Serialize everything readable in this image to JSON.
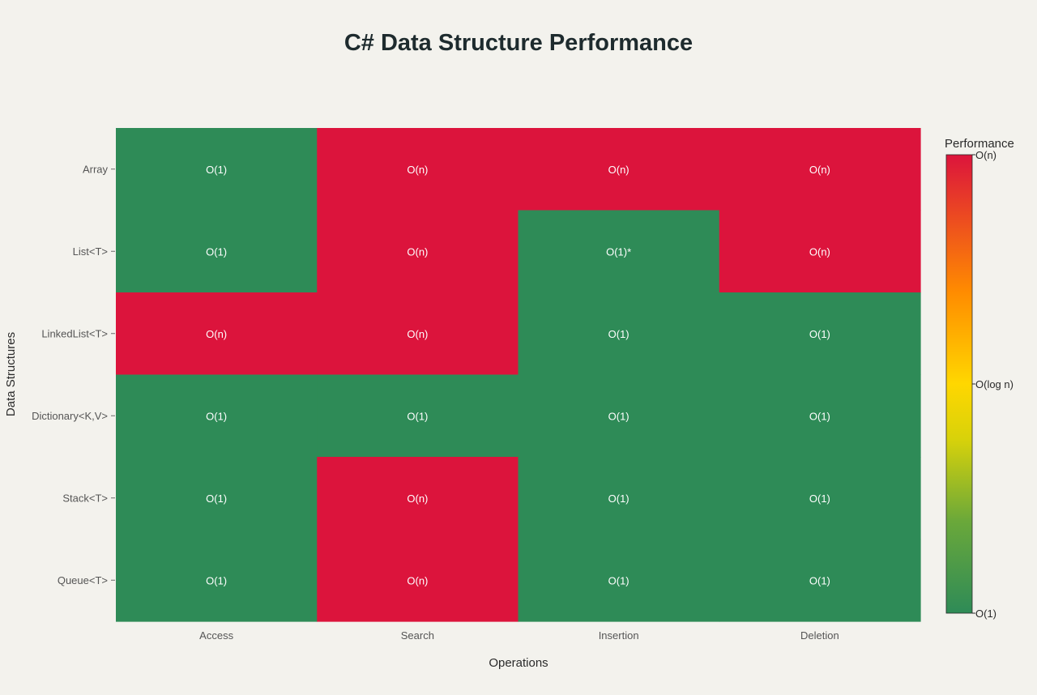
{
  "chart_data": {
    "type": "heatmap",
    "title": "C# Data Structure Performance",
    "xlabel": "Operations",
    "ylabel": "Data Structures",
    "x_categories": [
      "Access",
      "Search",
      "Insertion",
      "Deletion"
    ],
    "y_categories": [
      "Array",
      "List<T>",
      "LinkedList<T>",
      "Dictionary<K,V>",
      "Stack<T>",
      "Queue<T>"
    ],
    "cells": [
      [
        "O(1)",
        "O(n)",
        "O(n)",
        "O(n)"
      ],
      [
        "O(1)",
        "O(n)",
        "O(1)*",
        "O(n)"
      ],
      [
        "O(n)",
        "O(n)",
        "O(1)",
        "O(1)"
      ],
      [
        "O(1)",
        "O(1)",
        "O(1)",
        "O(1)"
      ],
      [
        "O(1)",
        "O(n)",
        "O(1)",
        "O(1)"
      ],
      [
        "O(1)",
        "O(n)",
        "O(1)",
        "O(1)"
      ]
    ],
    "values": [
      [
        1,
        3,
        3,
        3
      ],
      [
        1,
        3,
        1,
        3
      ],
      [
        3,
        3,
        1,
        1
      ],
      [
        1,
        1,
        1,
        1
      ],
      [
        1,
        3,
        1,
        1
      ],
      [
        1,
        3,
        1,
        1
      ]
    ],
    "colorbar": {
      "title": "Performance",
      "range": [
        1,
        3
      ],
      "ticks": [
        {
          "value": 3,
          "label": "O(n)"
        },
        {
          "value": 2,
          "label": "O(log n)"
        },
        {
          "value": 1,
          "label": "O(1)"
        }
      ],
      "colors": [
        "#2e8b57",
        "#9acd32",
        "#ffd700",
        "#ffa500",
        "#ff8c00",
        "#dc143c"
      ]
    },
    "colors": {
      "low": "#2e8b57",
      "high": "#dc143c"
    },
    "grid": false,
    "legend": "right"
  }
}
